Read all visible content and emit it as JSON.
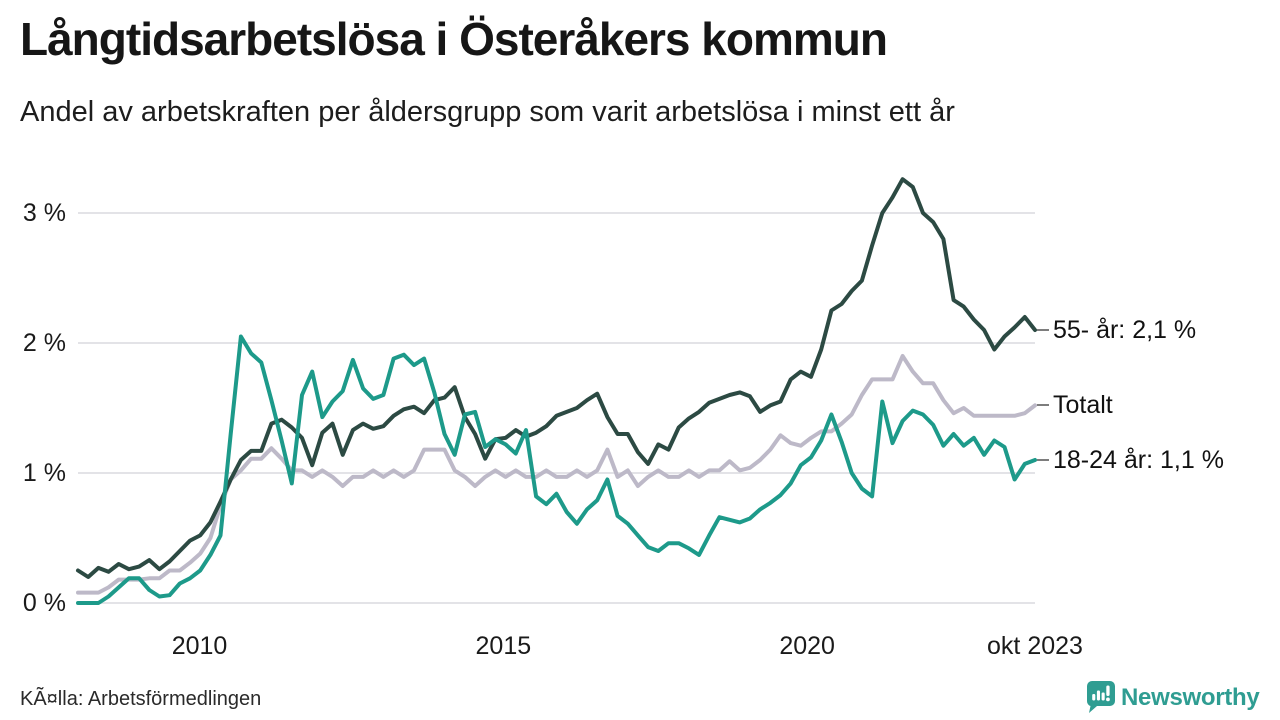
{
  "header": {
    "title": "Långtidsarbetslösa i Österåkers kommun",
    "subtitle": "Andel av arbetskraften per åldersgrupp som varit arbetslösa i minst ett år"
  },
  "footer": {
    "source": "KÃ¤lla: Arbetsförmedlingen",
    "brand": "Newsworthy",
    "brand_color": "#2f9d92"
  },
  "chart_data": {
    "type": "line",
    "title": "Långtidsarbetslösa i Österåkers kommun",
    "subtitle": "Andel av arbetskraften per åldersgrupp som varit arbetslösa i minst ett år",
    "x_range": [
      2008.0,
      2023.75
    ],
    "ylim": [
      0,
      3.5
    ],
    "grid": "horizontal",
    "legend_position": "right-edge-labels",
    "background": "#ffffff",
    "gridline_color": "#e3e3e7",
    "y_ticks": [
      {
        "value": 0,
        "label": "0 %"
      },
      {
        "value": 1,
        "label": "1 %"
      },
      {
        "value": 2,
        "label": "2 %"
      },
      {
        "value": 3,
        "label": "3 %"
      }
    ],
    "x_ticks": [
      {
        "year": 2010,
        "label": "2010"
      },
      {
        "year": 2015,
        "label": "2015"
      },
      {
        "year": 2020,
        "label": "2020"
      },
      {
        "year": 2023.75,
        "label": "okt 2023"
      }
    ],
    "series": [
      {
        "name": "55- år",
        "label": "55- år: 2,1 %",
        "last_value_label": "2,1 %",
        "color": "#2c4a43",
        "values": [
          0.25,
          0.2,
          0.27,
          0.24,
          0.3,
          0.26,
          0.28,
          0.33,
          0.26,
          0.32,
          0.4,
          0.48,
          0.52,
          0.62,
          0.78,
          0.95,
          1.1,
          1.17,
          1.17,
          1.38,
          1.41,
          1.35,
          1.27,
          1.06,
          1.31,
          1.38,
          1.14,
          1.33,
          1.38,
          1.34,
          1.36,
          1.44,
          1.49,
          1.51,
          1.46,
          1.56,
          1.58,
          1.66,
          1.43,
          1.3,
          1.11,
          1.26,
          1.27,
          1.33,
          1.28,
          1.31,
          1.36,
          1.44,
          1.47,
          1.5,
          1.56,
          1.61,
          1.43,
          1.3,
          1.3,
          1.16,
          1.07,
          1.22,
          1.18,
          1.35,
          1.42,
          1.47,
          1.54,
          1.57,
          1.6,
          1.62,
          1.59,
          1.47,
          1.52,
          1.55,
          1.72,
          1.78,
          1.74,
          1.95,
          2.25,
          2.3,
          2.4,
          2.48,
          2.75,
          3.0,
          3.12,
          3.26,
          3.2,
          3.0,
          2.93,
          2.8,
          2.33,
          2.28,
          2.18,
          2.1,
          1.95,
          2.05,
          2.12,
          2.2,
          2.1
        ]
      },
      {
        "name": "Totalt",
        "label": "Totalt",
        "last_value_label": "",
        "color": "#bdb9c8",
        "values": [
          0.08,
          0.08,
          0.08,
          0.12,
          0.18,
          0.18,
          0.18,
          0.19,
          0.19,
          0.25,
          0.25,
          0.31,
          0.38,
          0.5,
          0.75,
          0.95,
          1.02,
          1.11,
          1.11,
          1.19,
          1.11,
          1.02,
          1.02,
          0.97,
          1.02,
          0.97,
          0.9,
          0.97,
          0.97,
          1.02,
          0.97,
          1.02,
          0.97,
          1.02,
          1.18,
          1.18,
          1.18,
          1.02,
          0.97,
          0.9,
          0.97,
          1.02,
          0.97,
          1.02,
          0.97,
          0.97,
          1.02,
          0.97,
          0.97,
          1.02,
          0.97,
          1.02,
          1.18,
          0.97,
          1.02,
          0.9,
          0.97,
          1.02,
          0.97,
          0.97,
          1.02,
          0.97,
          1.02,
          1.02,
          1.09,
          1.02,
          1.04,
          1.1,
          1.18,
          1.29,
          1.23,
          1.21,
          1.27,
          1.32,
          1.32,
          1.38,
          1.45,
          1.6,
          1.72,
          1.72,
          1.72,
          1.9,
          1.78,
          1.69,
          1.69,
          1.56,
          1.46,
          1.5,
          1.44,
          1.44,
          1.44,
          1.44,
          1.44,
          1.46,
          1.52
        ]
      },
      {
        "name": "18-24 år",
        "label": "18-24 år: 1,1 %",
        "last_value_label": "1,1 %",
        "color": "#1d9a8a",
        "values": [
          0.0,
          0.0,
          0.0,
          0.05,
          0.12,
          0.19,
          0.19,
          0.1,
          0.05,
          0.06,
          0.15,
          0.19,
          0.25,
          0.37,
          0.52,
          1.3,
          2.05,
          1.92,
          1.85,
          1.56,
          1.25,
          0.92,
          1.6,
          1.78,
          1.43,
          1.55,
          1.63,
          1.87,
          1.65,
          1.57,
          1.6,
          1.88,
          1.91,
          1.83,
          1.88,
          1.62,
          1.3,
          1.14,
          1.45,
          1.47,
          1.2,
          1.26,
          1.22,
          1.15,
          1.33,
          0.82,
          0.76,
          0.84,
          0.7,
          0.61,
          0.72,
          0.79,
          0.95,
          0.67,
          0.61,
          0.52,
          0.43,
          0.4,
          0.46,
          0.46,
          0.42,
          0.37,
          0.52,
          0.66,
          0.64,
          0.62,
          0.65,
          0.72,
          0.77,
          0.83,
          0.92,
          1.06,
          1.12,
          1.25,
          1.45,
          1.24,
          1.0,
          0.88,
          0.82,
          1.55,
          1.23,
          1.4,
          1.48,
          1.45,
          1.37,
          1.21,
          1.3,
          1.21,
          1.27,
          1.14,
          1.25,
          1.2,
          0.95,
          1.07,
          1.1
        ]
      }
    ]
  }
}
